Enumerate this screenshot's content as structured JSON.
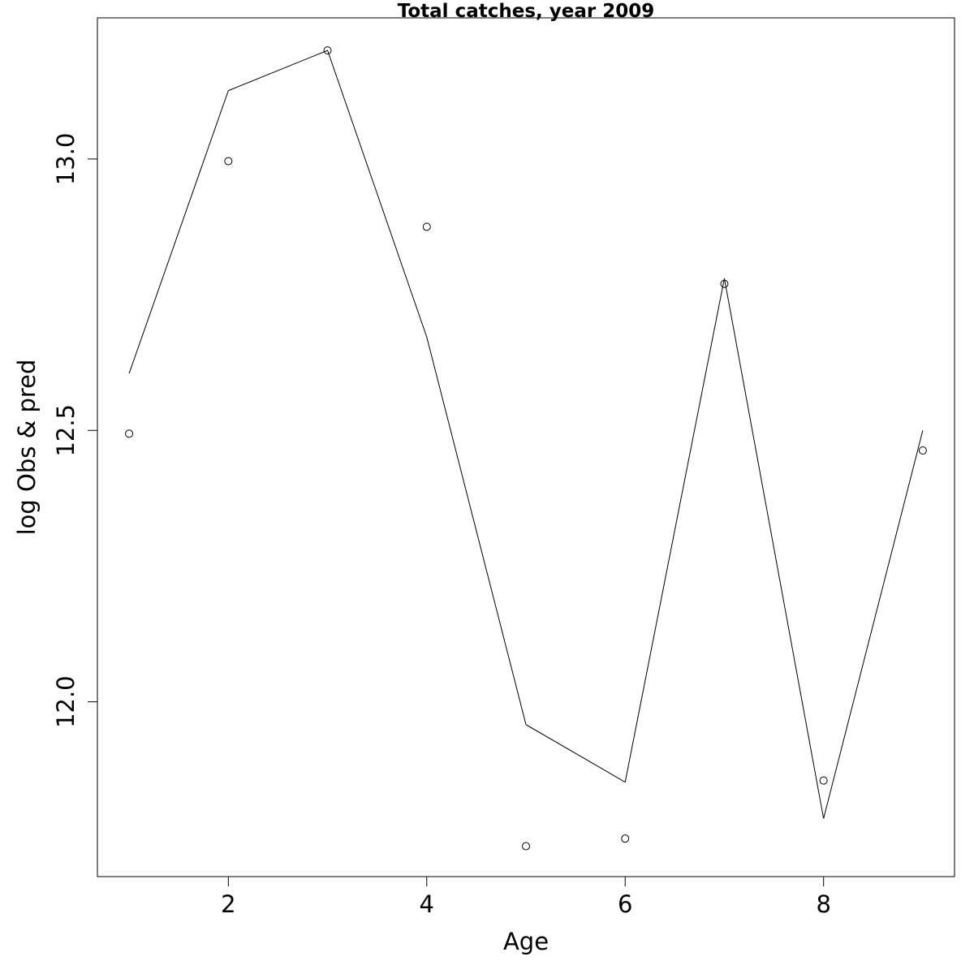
{
  "chart_data": {
    "type": "line",
    "title": "Total catches, year 2009",
    "xlabel": "Age",
    "ylabel": "log Obs & pred",
    "xlim": [
      0.68,
      9.32
    ],
    "ylim": [
      11.678,
      13.26
    ],
    "x_ticks": [
      2,
      4,
      6,
      8
    ],
    "x_tick_labels": [
      "2",
      "4",
      "6",
      "8"
    ],
    "y_ticks": [
      12.0,
      12.5,
      13.0
    ],
    "y_tick_labels": [
      "12.0",
      "12.5",
      "13.0"
    ],
    "grid": false,
    "series": [
      {
        "kind": "points",
        "marker": "open-circle",
        "x": [
          1,
          2,
          3,
          4,
          5,
          6,
          7,
          8,
          9
        ],
        "y": [
          12.494,
          12.996,
          13.2,
          12.875,
          11.734,
          11.748,
          12.77,
          11.855,
          12.463
        ]
      },
      {
        "kind": "line",
        "x": [
          1,
          2,
          3,
          4,
          5,
          6,
          7,
          8,
          9
        ],
        "y": [
          12.605,
          13.126,
          13.2,
          12.672,
          11.958,
          11.852,
          12.78,
          11.785,
          12.5
        ]
      }
    ]
  }
}
